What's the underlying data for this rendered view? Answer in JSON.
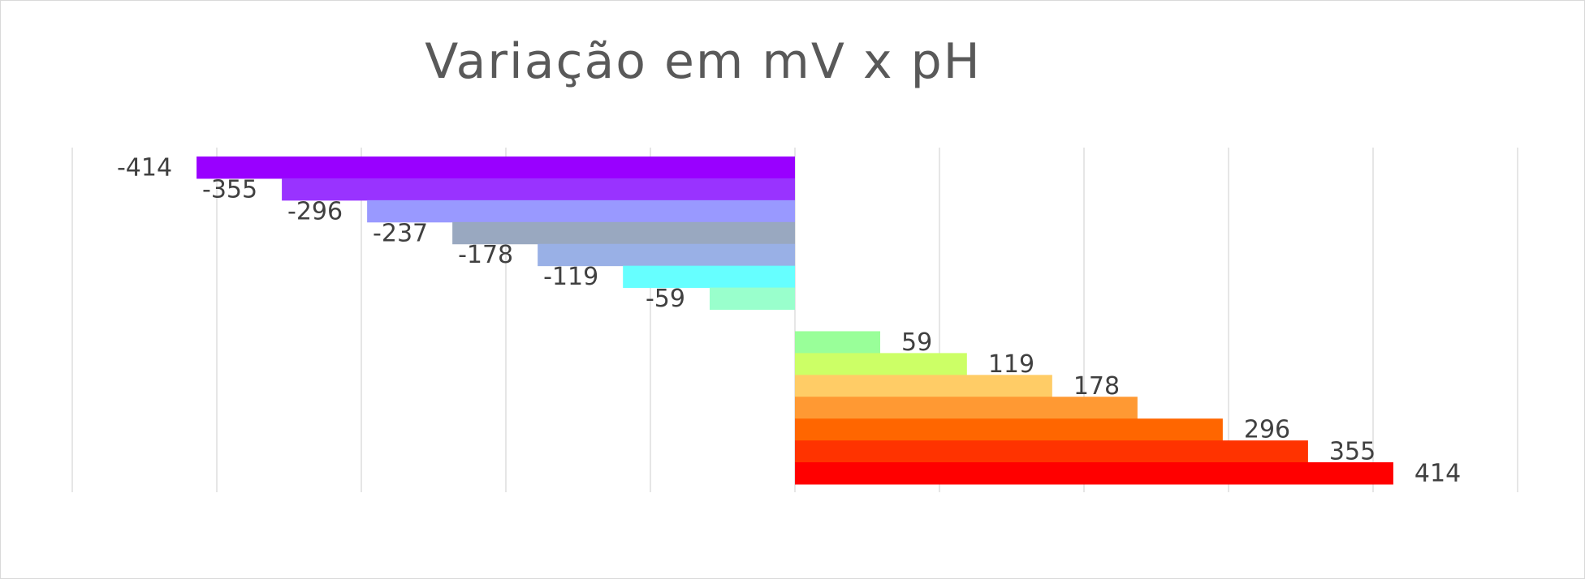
{
  "chart_data": {
    "type": "bar",
    "orientation": "horizontal",
    "title": "Variação em mV x pH",
    "xlim": [
      -500,
      500
    ],
    "grid": true,
    "legend": false,
    "items": [
      {
        "value": -414,
        "label": "-414",
        "color": "#9900FF"
      },
      {
        "value": -355,
        "label": "-355",
        "color": "#9933FF"
      },
      {
        "value": -296,
        "label": "-296",
        "color": "#9999FF"
      },
      {
        "value": -237,
        "label": "-237",
        "color": "#99A8C0"
      },
      {
        "value": -178,
        "label": "-178",
        "color": "#99B0E6"
      },
      {
        "value": -119,
        "label": "-119",
        "color": "#66FFFF"
      },
      {
        "value": -59,
        "label": "-59",
        "color": "#99FFCC"
      },
      {
        "value": 0,
        "label": "",
        "color": "#ffffff"
      },
      {
        "value": 59,
        "label": "59",
        "color": "#99FF99"
      },
      {
        "value": 119,
        "label": "119",
        "color": "#CCFF66"
      },
      {
        "value": 178,
        "label": "178",
        "color": "#FFCC66"
      },
      {
        "value": 237,
        "label": "",
        "color": "#FF9933"
      },
      {
        "value": 296,
        "label": "296",
        "color": "#FF6600"
      },
      {
        "value": 355,
        "label": "355",
        "color": "#FF3300"
      },
      {
        "value": 414,
        "label": "414",
        "color": "#FF0000"
      }
    ]
  }
}
